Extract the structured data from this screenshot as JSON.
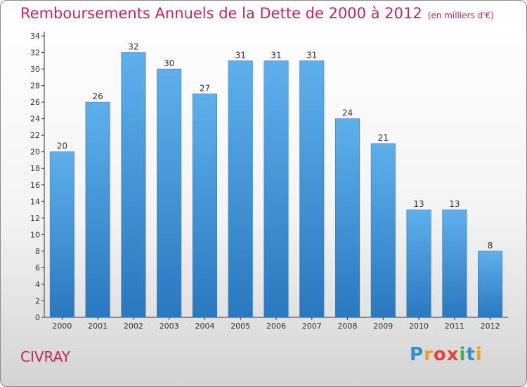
{
  "header": {
    "title": "Remboursements Annuels de la Dette de 2000 à 2012",
    "subtitle": "(en milliers d'€)"
  },
  "footer": {
    "place": "CIVRAY",
    "logo_letters": [
      "P",
      "r",
      "o",
      "x",
      "i",
      "t",
      "i"
    ],
    "logo_colors": [
      "#2f8fd6",
      "#f0a020",
      "#e8403a",
      "#e8403a",
      "#43b04a",
      "#2f8fd6",
      "#f0a020"
    ]
  },
  "colors": {
    "bar": "#3e95d8",
    "bar_light": "#5eb0ec",
    "bar_dark": "#2a78bf",
    "axis": "#333333",
    "grid": "#c8c8c8"
  },
  "chart_data": {
    "type": "bar",
    "categories": [
      "2000",
      "2001",
      "2002",
      "2003",
      "2004",
      "2005",
      "2006",
      "2007",
      "2008",
      "2009",
      "2010",
      "2011",
      "2012"
    ],
    "values": [
      20,
      26,
      32,
      30,
      27,
      31,
      31,
      31,
      24,
      21,
      13,
      13,
      8
    ],
    "title": "Remboursements Annuels de la Dette de 2000 à 2012",
    "subtitle": "(en milliers d'€)",
    "xlabel": "",
    "ylabel": "",
    "ylim": [
      0,
      34
    ],
    "yticks": [
      0,
      2,
      4,
      6,
      8,
      10,
      12,
      14,
      16,
      18,
      20,
      22,
      24,
      26,
      28,
      30,
      32,
      34
    ],
    "grid": false,
    "legend": "none"
  }
}
